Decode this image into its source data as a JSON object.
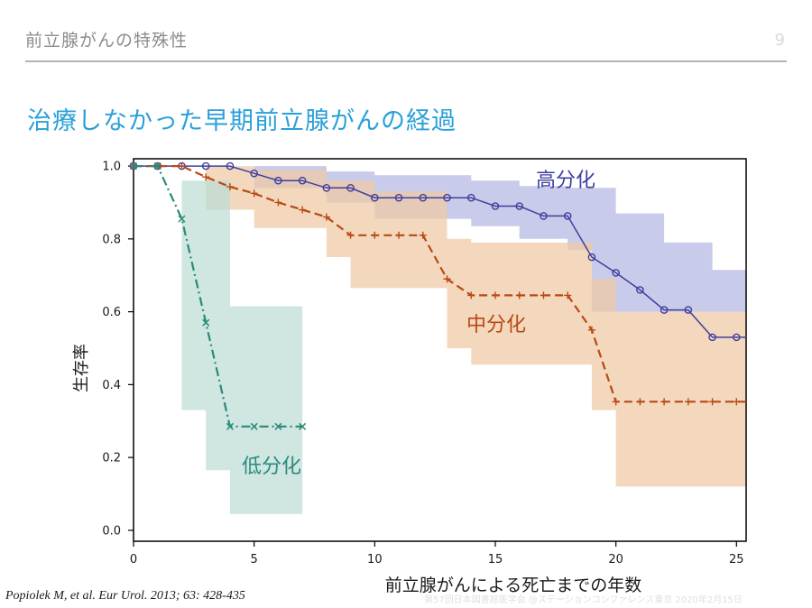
{
  "header": {
    "section_title": "前立腺がんの特殊性",
    "page_number": "9"
  },
  "slide_title": "治療しなかった早期前立腺がんの経過",
  "citation": "Popiolek M, et al. Eur Urol. 2013; 63: 428-435",
  "footer_note": "第57回日本図書館医学会 @ステーションコンファレンス東京 2020年2月15日",
  "chart_data": {
    "type": "line",
    "subtype": "kaplan-meier survival curves with confidence bands",
    "xlabel": "前立腺がんによる死亡までの年数",
    "ylabel": "生存率",
    "xlim": [
      0,
      25.4
    ],
    "ylim": [
      -0.03,
      1.02
    ],
    "xticks": [
      0,
      5,
      10,
      15,
      20,
      25
    ],
    "yticks": [
      "0.0",
      "0.2",
      "0.4",
      "0.6",
      "0.8",
      "1.0"
    ],
    "grid": false,
    "series": [
      {
        "name": "高分化",
        "color": "#3f3f9f",
        "band_color": "#b3b7e0",
        "line_style": "solid",
        "marker": "circle",
        "points": [
          [
            0,
            1.0
          ],
          [
            1,
            1.0
          ],
          [
            2,
            1.0
          ],
          [
            3,
            1.0
          ],
          [
            4,
            1.0
          ],
          [
            5,
            0.98
          ],
          [
            6,
            0.96
          ],
          [
            7,
            0.96
          ],
          [
            8,
            0.94
          ],
          [
            9,
            0.94
          ],
          [
            10,
            0.913
          ],
          [
            11,
            0.913
          ],
          [
            12,
            0.913
          ],
          [
            13,
            0.913
          ],
          [
            14,
            0.913
          ],
          [
            15,
            0.89
          ],
          [
            16,
            0.89
          ],
          [
            17,
            0.863
          ],
          [
            18,
            0.863
          ],
          [
            19,
            0.75
          ],
          [
            20,
            0.707
          ],
          [
            21,
            0.66
          ],
          [
            22,
            0.605
          ],
          [
            23,
            0.605
          ],
          [
            24,
            0.53
          ],
          [
            25,
            0.53
          ],
          [
            25.4,
            0.53
          ]
        ],
        "ci_upper": [
          [
            0,
            1.0
          ],
          [
            5,
            1.0
          ],
          [
            8,
            0.985
          ],
          [
            10,
            0.975
          ],
          [
            12,
            0.975
          ],
          [
            14,
            0.96
          ],
          [
            16,
            0.945
          ],
          [
            18,
            0.94
          ],
          [
            20,
            0.87
          ],
          [
            22,
            0.79
          ],
          [
            24,
            0.715
          ],
          [
            25.4,
            0.715
          ]
        ],
        "ci_lower": [
          [
            0,
            1.0
          ],
          [
            5,
            0.94
          ],
          [
            8,
            0.9
          ],
          [
            10,
            0.855
          ],
          [
            12,
            0.855
          ],
          [
            14,
            0.835
          ],
          [
            16,
            0.8
          ],
          [
            18,
            0.77
          ],
          [
            19,
            0.6
          ],
          [
            24,
            0.6
          ],
          [
            25.4,
            0.6
          ]
        ]
      },
      {
        "name": "中分化",
        "color": "#b84a12",
        "band_color": "#efc9a3",
        "line_style": "dashed",
        "marker": "plus",
        "points": [
          [
            0,
            1.0
          ],
          [
            1,
            1.0
          ],
          [
            2,
            1.0
          ],
          [
            3,
            0.97
          ],
          [
            4,
            0.943
          ],
          [
            5,
            0.925
          ],
          [
            6,
            0.9
          ],
          [
            7,
            0.88
          ],
          [
            8,
            0.86
          ],
          [
            9,
            0.81
          ],
          [
            10,
            0.81
          ],
          [
            11,
            0.81
          ],
          [
            12,
            0.81
          ],
          [
            13,
            0.69
          ],
          [
            14,
            0.645
          ],
          [
            15,
            0.645
          ],
          [
            16,
            0.645
          ],
          [
            17,
            0.645
          ],
          [
            18,
            0.645
          ],
          [
            19,
            0.55
          ],
          [
            20,
            0.353
          ],
          [
            21,
            0.353
          ],
          [
            22,
            0.353
          ],
          [
            23,
            0.353
          ],
          [
            24,
            0.353
          ],
          [
            25,
            0.353
          ],
          [
            25.4,
            0.353
          ]
        ],
        "ci_upper": [
          [
            0,
            1.0
          ],
          [
            3,
            1.0
          ],
          [
            5,
            0.99
          ],
          [
            8,
            0.96
          ],
          [
            10,
            0.93
          ],
          [
            12,
            0.93
          ],
          [
            13,
            0.8
          ],
          [
            14,
            0.79
          ],
          [
            18,
            0.79
          ],
          [
            19,
            0.69
          ],
          [
            20,
            0.6
          ],
          [
            25.4,
            0.6
          ]
        ],
        "ci_lower": [
          [
            0,
            1.0
          ],
          [
            3,
            0.88
          ],
          [
            5,
            0.83
          ],
          [
            8,
            0.75
          ],
          [
            9,
            0.665
          ],
          [
            12,
            0.665
          ],
          [
            13,
            0.5
          ],
          [
            14,
            0.455
          ],
          [
            18,
            0.455
          ],
          [
            19,
            0.33
          ],
          [
            20,
            0.12
          ],
          [
            25.4,
            0.12
          ]
        ]
      },
      {
        "name": "低分化",
        "color": "#2a8a7a",
        "band_color": "#bcdcd5",
        "line_style": "dashdot",
        "marker": "x",
        "points": [
          [
            0,
            1.0
          ],
          [
            1,
            1.0
          ],
          [
            2,
            0.855
          ],
          [
            3,
            0.57
          ],
          [
            4,
            0.285
          ],
          [
            5,
            0.285
          ],
          [
            6,
            0.285
          ],
          [
            7,
            0.285
          ]
        ],
        "ci_upper": [
          [
            1,
            1.0
          ],
          [
            2,
            0.96
          ],
          [
            4,
            0.615
          ],
          [
            7,
            0.615
          ]
        ],
        "ci_lower": [
          [
            1,
            1.0
          ],
          [
            2,
            0.33
          ],
          [
            3,
            0.165
          ],
          [
            4,
            0.045
          ],
          [
            7,
            0.045
          ]
        ]
      }
    ]
  }
}
